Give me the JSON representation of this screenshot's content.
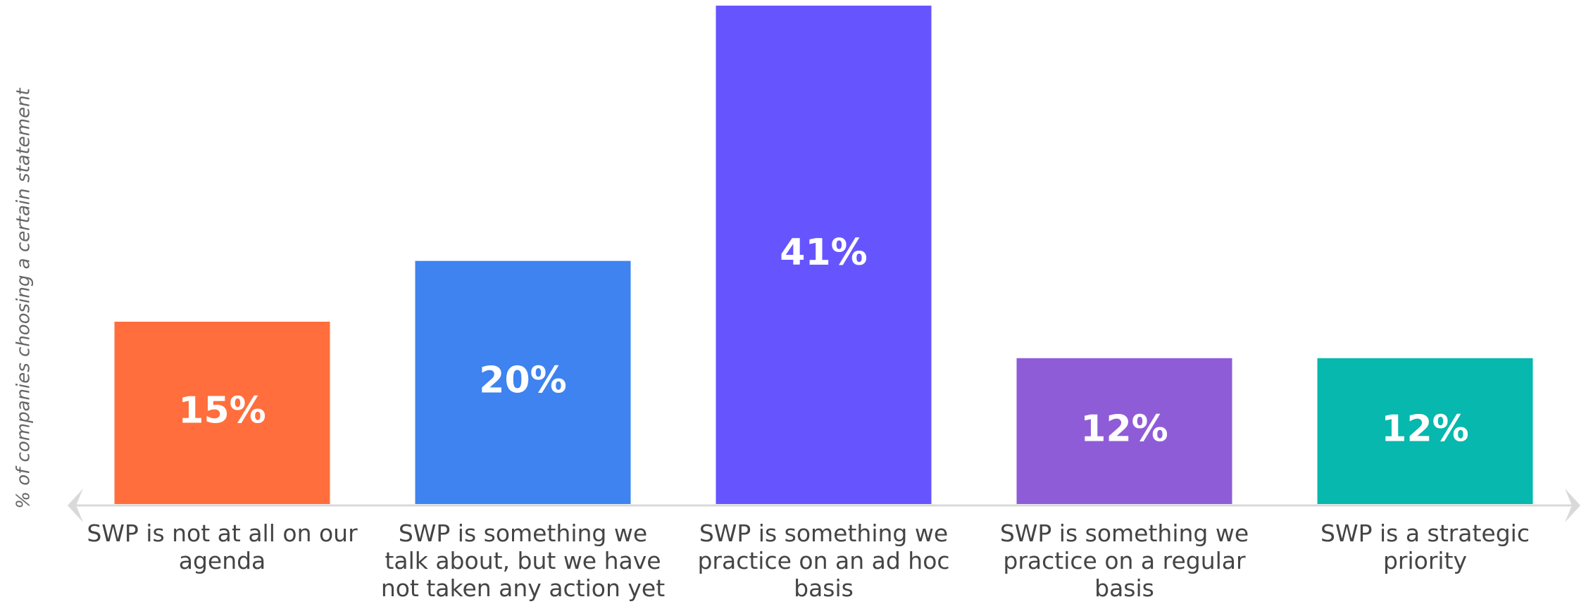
{
  "chart_data": {
    "type": "bar",
    "y_axis_label": "% of companies choosing a certain statement",
    "categories": [
      "SWP is not at all on our agenda",
      "SWP is something we talk about, but we have not taken any action yet",
      "SWP is something we practice on an ad hoc basis",
      "SWP is something we practice on a regular basis",
      "SWP is a strategic priority"
    ],
    "values": [
      15,
      20,
      41,
      12,
      12
    ],
    "value_labels": [
      "15%",
      "20%",
      "41%",
      "12%",
      "12%"
    ],
    "colors": [
      "#ff6e3c",
      "#3e83ef",
      "#6655ff",
      "#8f5cd8",
      "#06b8ad"
    ],
    "ylim": [
      0,
      41
    ]
  }
}
